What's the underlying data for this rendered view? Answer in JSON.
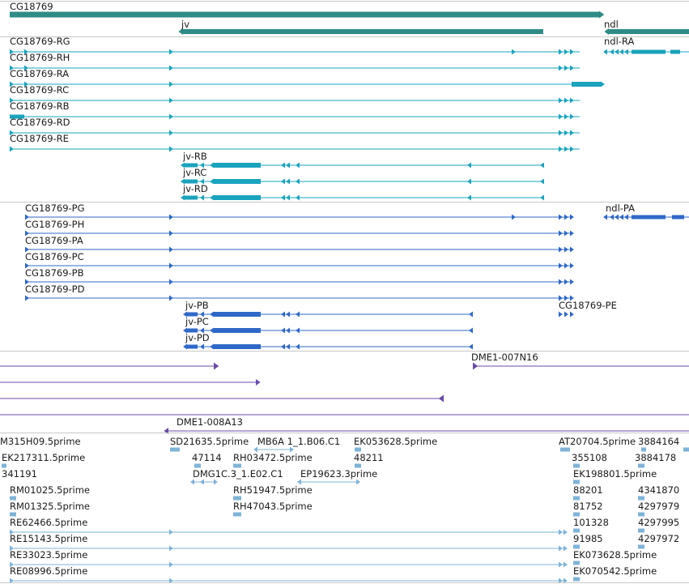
{
  "colors": {
    "gene": "#2e8b85",
    "mrna_rna": "#1aa3bd",
    "protein": "#2f68c8",
    "clone": "#6a4ba8",
    "est": "#7fb3d8",
    "separator": "#c8c8c8",
    "text": "#1a1a1a"
  },
  "icons": [
    "strand-forward-arrow",
    "strand-reverse-arrow"
  ],
  "genes": [
    {
      "label": "CG18769",
      "strand": "+"
    },
    {
      "label": "jv",
      "strand": "-"
    },
    {
      "label": "ndl",
      "strand": "-"
    }
  ],
  "transcripts": [
    {
      "label": "CG18769-RG"
    },
    {
      "label": "CG18769-RH"
    },
    {
      "label": "CG18769-RA"
    },
    {
      "label": "CG18769-RC"
    },
    {
      "label": "CG18769-RB"
    },
    {
      "label": "CG18769-RD"
    },
    {
      "label": "CG18769-RE"
    },
    {
      "label": "jv-RB"
    },
    {
      "label": "jv-RC"
    },
    {
      "label": "jv-RD"
    },
    {
      "label": "ndl-RA"
    }
  ],
  "proteins": [
    {
      "label": "CG18769-PG"
    },
    {
      "label": "CG18769-PH"
    },
    {
      "label": "CG18769-PA"
    },
    {
      "label": "CG18769-PC"
    },
    {
      "label": "CG18769-PB"
    },
    {
      "label": "CG18769-PD"
    },
    {
      "label": "jv-PB"
    },
    {
      "label": "jv-PC"
    },
    {
      "label": "jv-PD"
    },
    {
      "label": "CG18769-PE"
    },
    {
      "label": "ndl-PA"
    }
  ],
  "clones": [
    {
      "label": "DME1-007N16"
    },
    {
      "label": "DME1-008A13"
    }
  ],
  "ests": [
    {
      "label": "M315H09.5prime"
    },
    {
      "label": "SD21635.5prime"
    },
    {
      "label": "MB6A 1_1.B06.C1"
    },
    {
      "label": "EK053628.5prime"
    },
    {
      "label": "AT20704.5prime"
    },
    {
      "label": "3884164"
    },
    {
      "label": "EK217311.5prime"
    },
    {
      "label": "47114"
    },
    {
      "label": "RH03472.5prime"
    },
    {
      "label": "48211"
    },
    {
      "label": "355108"
    },
    {
      "label": "3884178"
    },
    {
      "label": "341191"
    },
    {
      "label": "DMG1C.3_1.E02.C1"
    },
    {
      "label": "EP19623.3prime"
    },
    {
      "label": "EK198801.5prime"
    },
    {
      "label": "RM01025.5prime"
    },
    {
      "label": "RH51947.5prime"
    },
    {
      "label": "88201"
    },
    {
      "label": "4341870"
    },
    {
      "label": "RM01325.5prime"
    },
    {
      "label": "RH47043.5prime"
    },
    {
      "label": "81752"
    },
    {
      "label": "4297979"
    },
    {
      "label": "RE62466.5prime"
    },
    {
      "label": "101328"
    },
    {
      "label": "4297995"
    },
    {
      "label": "RE15143.5prime"
    },
    {
      "label": "91985"
    },
    {
      "label": "4297972"
    },
    {
      "label": "RE33023.5prime"
    },
    {
      "label": "EK073628.5prime"
    },
    {
      "label": "RE08996.5prime"
    },
    {
      "label": "EK070542.5prime"
    }
  ]
}
